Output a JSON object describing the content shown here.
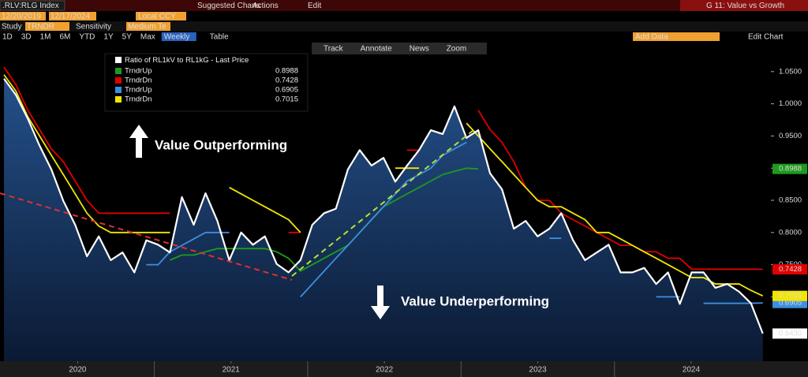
{
  "toolbar": {
    "security": ".RLV:RLG Index",
    "start": "12/20/2019",
    "end": "12/17/2024",
    "currency": "Local CCY",
    "suggested": "Suggested Charts",
    "actions": "Actions",
    "edit": "Edit",
    "page": "G 11: Value vs Growth",
    "study_label": "Study",
    "study": "TRNDR",
    "sensitivity_label": "Sensitivity",
    "sensitivity": "Medium Te",
    "add_data": "Add Data",
    "edit_chart": "Edit Chart",
    "periods": [
      "1D",
      "3D",
      "1M",
      "6M",
      "YTD",
      "1Y",
      "5Y",
      "Max"
    ],
    "frequency": "Weekly",
    "table": "Table",
    "chart_tools": [
      "Track",
      "Annotate",
      "News",
      "Zoom"
    ]
  },
  "chart_data": {
    "type": "line",
    "legend_title": "Ratio of RL1kV to RL1kG - Last Price",
    "annotations": [
      "Value Outperforming",
      "Value Underperforming"
    ],
    "x": [
      2020.02,
      2020.097,
      2020.175,
      2020.252,
      2020.329,
      2020.407,
      2020.484,
      2020.561,
      2020.638,
      2020.716,
      2020.793,
      2020.87,
      2020.948,
      2021.025,
      2021.102,
      2021.18,
      2021.257,
      2021.334,
      2021.411,
      2021.489,
      2021.566,
      2021.643,
      2021.721,
      2021.798,
      2021.875,
      2021.953,
      2022.03,
      2022.107,
      2022.184,
      2022.262,
      2022.339,
      2022.416,
      2022.494,
      2022.571,
      2022.648,
      2022.726,
      2022.803,
      2022.88,
      2022.957,
      2023.035,
      2023.112,
      2023.189,
      2023.267,
      2023.344,
      2023.421,
      2023.499,
      2023.576,
      2023.653,
      2023.73,
      2023.808,
      2023.885,
      2023.962,
      2024.04,
      2024.117,
      2024.194,
      2024.272,
      2024.349,
      2024.426,
      2024.503,
      2024.581,
      2024.658,
      2024.735,
      2024.813,
      2024.89,
      2024.967
    ],
    "xlim": [
      2019.994,
      2025.02
    ],
    "xticks": [
      {
        "value": 2020.5,
        "label": "2020"
      },
      {
        "value": 2021.5,
        "label": "2021"
      },
      {
        "value": 2022.5,
        "label": "2022"
      },
      {
        "value": 2023.5,
        "label": "2023"
      },
      {
        "value": 2024.5,
        "label": "2024"
      }
    ],
    "ylim": [
      0.6,
      1.1
    ],
    "yticks": [
      {
        "value": 0.7,
        "label": "0.7000"
      },
      {
        "value": 0.75,
        "label": "0.7500"
      },
      {
        "value": 0.8,
        "label": "0.8000"
      },
      {
        "value": 0.85,
        "label": "0.8500"
      },
      {
        "value": 0.9,
        "label": "0.9000"
      },
      {
        "value": 0.95,
        "label": "0.9500"
      },
      {
        "value": 1.0,
        "label": "1.0000"
      },
      {
        "value": 1.05,
        "label": "1.0500"
      }
    ],
    "series": [
      {
        "name": "TrndrUp",
        "color": "#1e9a1e",
        "values": [
          null,
          null,
          null,
          null,
          null,
          null,
          null,
          null,
          null,
          null,
          null,
          null,
          null,
          null,
          0.757,
          0.765,
          0.765,
          0.77,
          0.775,
          0.775,
          0.775,
          0.775,
          0.775,
          0.77,
          0.76,
          0.74,
          0.75,
          0.76,
          0.77,
          0.78,
          0.8,
          0.82,
          0.84,
          0.85,
          0.86,
          0.87,
          0.88,
          0.89,
          0.895,
          0.9,
          0.8988,
          null,
          null,
          null,
          null,
          null,
          null,
          null,
          null,
          null,
          null,
          null,
          null,
          null,
          null,
          null,
          null,
          null,
          null,
          null,
          null,
          null,
          null,
          null,
          null
        ]
      },
      {
        "name": "TrndrDn",
        "color": "#e00000",
        "values": [
          1.057,
          1.03,
          0.99,
          0.96,
          0.93,
          0.91,
          0.88,
          0.85,
          0.83,
          0.83,
          0.83,
          0.83,
          0.83,
          0.83,
          0.83,
          null,
          null,
          null,
          null,
          null,
          null,
          null,
          null,
          null,
          0.8,
          0.8,
          null,
          null,
          null,
          null,
          null,
          null,
          null,
          null,
          0.928,
          0.928,
          null,
          null,
          null,
          null,
          0.99,
          0.96,
          0.94,
          0.91,
          0.87,
          0.85,
          0.85,
          0.83,
          0.82,
          0.81,
          0.8,
          0.79,
          0.78,
          0.78,
          0.77,
          0.77,
          0.76,
          0.76,
          0.743,
          0.743,
          0.743,
          0.743,
          0.743,
          0.743,
          0.7428
        ]
      },
      {
        "name": "TrndrUp",
        "color": "#3d8fe0",
        "values": [
          null,
          null,
          null,
          null,
          null,
          null,
          null,
          null,
          null,
          null,
          null,
          null,
          0.75,
          0.75,
          0.77,
          0.78,
          0.79,
          0.8,
          0.8,
          0.8,
          null,
          null,
          null,
          null,
          null,
          0.7,
          0.72,
          0.74,
          0.76,
          0.78,
          0.8,
          0.82,
          0.84,
          0.86,
          0.88,
          0.89,
          0.9,
          0.92,
          0.93,
          0.94,
          null,
          null,
          null,
          null,
          null,
          null,
          0.791,
          0.791,
          null,
          null,
          null,
          null,
          null,
          null,
          null,
          0.7,
          0.7,
          0.7,
          null,
          0.69,
          0.69,
          0.69,
          0.69,
          0.69,
          0.6905
        ]
      },
      {
        "name": "TrndrDn",
        "color": "#f2e600",
        "values": [
          1.045,
          1.02,
          0.98,
          0.95,
          0.92,
          0.89,
          0.86,
          0.83,
          0.81,
          0.8,
          0.8,
          0.8,
          0.8,
          0.8,
          0.8,
          null,
          null,
          null,
          null,
          0.87,
          0.86,
          0.85,
          0.84,
          0.83,
          0.82,
          0.8,
          null,
          null,
          null,
          null,
          null,
          null,
          null,
          0.9,
          0.9,
          0.9,
          null,
          null,
          null,
          0.97,
          0.95,
          0.93,
          0.91,
          0.89,
          0.87,
          0.85,
          0.84,
          0.84,
          0.83,
          0.82,
          0.8,
          0.8,
          0.79,
          0.78,
          0.77,
          0.76,
          0.75,
          0.74,
          0.73,
          0.73,
          0.72,
          0.72,
          0.72,
          0.71,
          0.7015
        ]
      },
      {
        "name": "Last Price",
        "color": "#ffffff",
        "values": [
          1.039,
          1.014,
          0.977,
          0.935,
          0.898,
          0.849,
          0.812,
          0.763,
          0.794,
          0.757,
          0.769,
          0.738,
          0.788,
          0.781,
          0.769,
          0.855,
          0.812,
          0.861,
          0.818,
          0.757,
          0.8,
          0.781,
          0.794,
          0.751,
          0.738,
          0.757,
          0.812,
          0.83,
          0.837,
          0.898,
          0.928,
          0.904,
          0.916,
          0.879,
          0.904,
          0.928,
          0.959,
          0.953,
          0.996,
          0.947,
          0.959,
          0.892,
          0.867,
          0.806,
          0.818,
          0.794,
          0.806,
          0.83,
          0.788,
          0.757,
          0.769,
          0.781,
          0.738,
          0.738,
          0.745,
          0.72,
          0.738,
          0.689,
          0.738,
          0.738,
          0.714,
          0.72,
          0.708,
          0.69,
          0.643
        ],
        "value_labels": [
          null,
          null,
          null,
          null,
          null,
          null,
          null,
          null,
          null,
          null,
          null,
          null,
          null,
          null,
          null,
          null,
          null,
          null,
          null,
          null,
          null,
          null,
          null,
          null,
          null,
          null,
          null,
          null,
          null,
          null,
          null,
          null,
          null,
          null,
          null,
          null,
          null,
          null,
          null,
          null,
          null,
          null,
          null,
          null,
          null,
          null,
          null,
          null,
          null,
          null,
          null,
          null,
          null,
          null,
          null,
          null,
          null,
          null,
          null,
          null,
          null,
          null,
          null,
          null,
          "0.6430"
        ]
      }
    ]
  }
}
